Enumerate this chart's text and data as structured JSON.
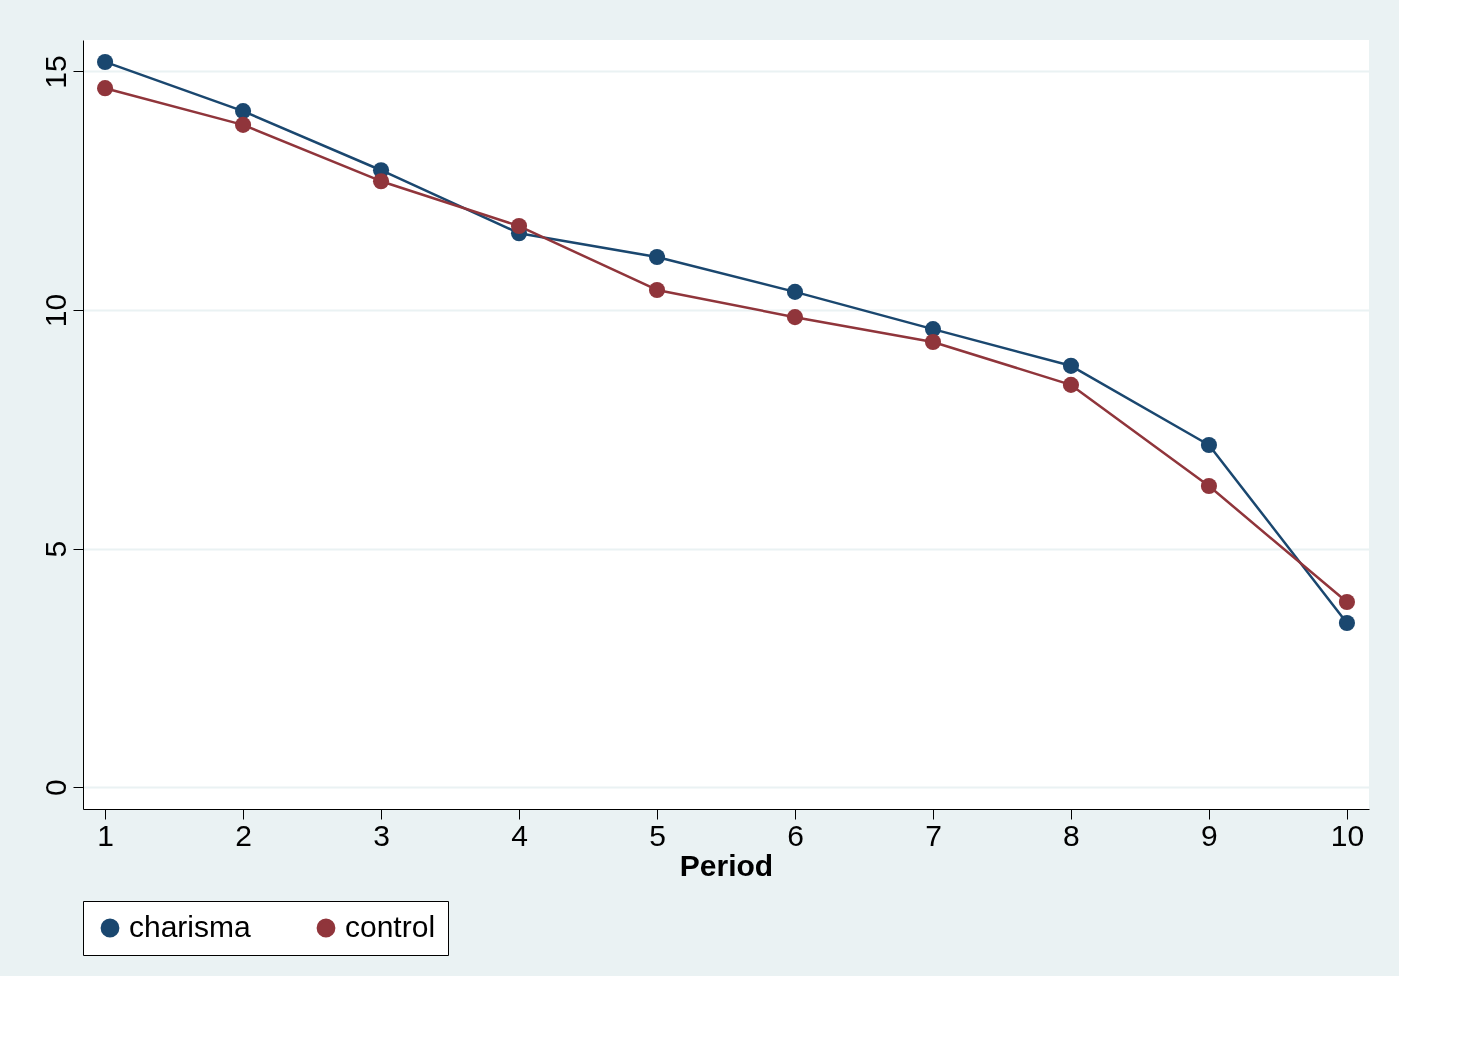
{
  "chart_data": {
    "type": "line",
    "xlabel": "Period",
    "x": [
      1,
      2,
      3,
      4,
      5,
      6,
      7,
      8,
      9,
      10
    ],
    "series": [
      {
        "name": "charisma",
        "color": "#1a476f",
        "values": [
          15.2,
          14.17,
          12.93,
          11.61,
          11.11,
          10.38,
          9.6,
          8.83,
          7.17,
          3.44
        ]
      },
      {
        "name": "control",
        "color": "#90353b",
        "values": [
          14.65,
          13.88,
          12.7,
          11.76,
          10.42,
          9.85,
          9.33,
          8.43,
          6.31,
          3.88
        ]
      }
    ],
    "xlim": [
      0.84,
      10.16
    ],
    "xticks": [
      1,
      2,
      3,
      4,
      5,
      6,
      7,
      8,
      9,
      10
    ],
    "ylim": [
      -0.46,
      15.66
    ],
    "yticks": [
      0,
      5,
      10,
      15
    ],
    "grid": "y",
    "legend": "bottom",
    "marker": "circle",
    "line_style": "solid"
  }
}
